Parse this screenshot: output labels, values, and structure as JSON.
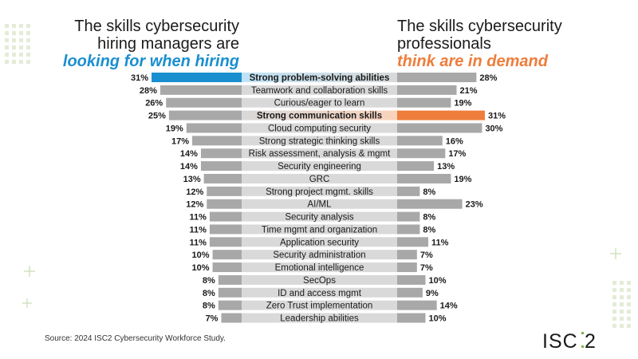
{
  "header_left": {
    "line1": "The skills cybersecurity",
    "line2": "hiring managers are",
    "highlight": "looking for when hiring"
  },
  "header_right": {
    "line1": "The skills cybersecurity",
    "line2": "professionals",
    "highlight": "think are in demand"
  },
  "source": "Source: 2024 ISC2 Cybersecurity Workforce Study.",
  "logo_text": "ISC2",
  "colors": {
    "blue": "#1a8fd0",
    "light_blue": "#bfe2f5",
    "orange": "#ef7d3b",
    "light_orange": "#f9d3bc",
    "gray_bar": "#a8a8a8",
    "label_bg": "#d9d9d9",
    "green": "#7ab648"
  },
  "chart_data": {
    "type": "bar",
    "orientation": "horizontal-butterfly",
    "categories": [
      "Strong problem-solving abilities",
      "Teamwork and collaboration skills",
      "Curious/eager to learn",
      "Strong communication skills",
      "Cloud computing security",
      "Strong strategic thinking skills",
      "Risk assessment, analysis & mgmt",
      "Security engineering",
      "GRC",
      "Strong project mgmt. skills",
      "AI/ML",
      "Security analysis",
      "Time mgmt and organization",
      "Application security",
      "Security administration",
      "Emotional intelligence",
      "SecOps",
      "ID and access mgmt",
      "Zero Trust implementation",
      "Leadership abilities"
    ],
    "series": [
      {
        "values": [
          31,
          28,
          26,
          25,
          19,
          17,
          14,
          14,
          13,
          12,
          12,
          11,
          11,
          11,
          10,
          10,
          8,
          8,
          8,
          7
        ]
      },
      {
        "values": [
          28,
          21,
          19,
          31,
          30,
          16,
          17,
          13,
          19,
          8,
          23,
          8,
          8,
          11,
          7,
          7,
          10,
          9,
          14,
          10
        ]
      }
    ],
    "highlight_left": 0,
    "highlight_right": 3,
    "bold_rows": [
      0,
      3
    ],
    "value_suffix": "%"
  }
}
